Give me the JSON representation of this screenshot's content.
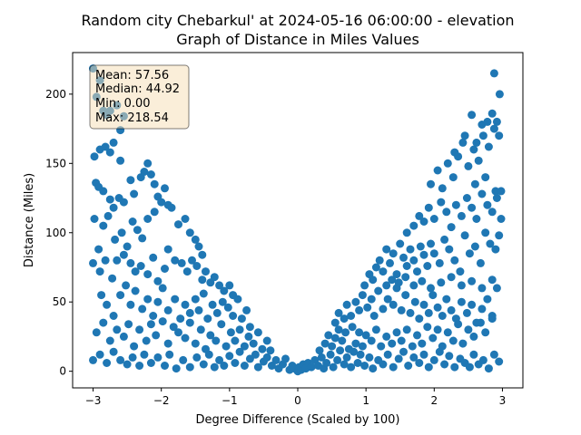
{
  "chart_data": {
    "type": "scatter",
    "title": "Random city Chebarkul' at 2024-05-16 06:00:00  - elevation",
    "subtitle": "Graph of Distance in Miles Values",
    "xlabel": "Degree Difference (Scaled by 100)",
    "ylabel": "Distance (Miles)",
    "xlim": [
      -3.3,
      3.3
    ],
    "ylim": [
      -12,
      230
    ],
    "xticks": [
      -3,
      -2,
      -1,
      0,
      1,
      2,
      3
    ],
    "xtick_labels": [
      "−3",
      "−2",
      "−1",
      "0",
      "1",
      "2",
      "3"
    ],
    "yticks": [
      0,
      50,
      100,
      150,
      200
    ],
    "ytick_labels": [
      "0",
      "50",
      "100",
      "150",
      "200"
    ],
    "grid": false,
    "point_color": "#1f77b4",
    "stats_box": {
      "mean": "Mean: 57.56",
      "median": "Median: 44.92",
      "min": "Min: 0.00",
      "max": "Max: 218.54"
    },
    "points": [
      [
        -3.0,
        218.5
      ],
      [
        -2.95,
        198
      ],
      [
        -2.9,
        210
      ],
      [
        -2.85,
        188
      ],
      [
        -2.8,
        185
      ],
      [
        -2.75,
        188
      ],
      [
        -2.65,
        192
      ],
      [
        -2.6,
        174
      ],
      [
        -2.55,
        184
      ],
      [
        -2.98,
        155
      ],
      [
        -2.9,
        160
      ],
      [
        -2.82,
        162
      ],
      [
        -2.75,
        158
      ],
      [
        -2.7,
        165
      ],
      [
        -2.6,
        152
      ],
      [
        -2.96,
        136
      ],
      [
        -2.92,
        133
      ],
      [
        -2.85,
        130
      ],
      [
        -2.75,
        124
      ],
      [
        -2.7,
        118
      ],
      [
        -2.62,
        125
      ],
      [
        -2.55,
        122
      ],
      [
        -2.45,
        138
      ],
      [
        -2.4,
        128
      ],
      [
        -2.3,
        140
      ],
      [
        -2.25,
        144
      ],
      [
        -2.2,
        150
      ],
      [
        -2.15,
        142
      ],
      [
        -2.1,
        135
      ],
      [
        -2.05,
        126
      ],
      [
        -1.95,
        132
      ],
      [
        -1.9,
        120
      ],
      [
        -2.98,
        110
      ],
      [
        -2.92,
        88
      ],
      [
        -2.85,
        105
      ],
      [
        -2.78,
        112
      ],
      [
        -2.68,
        95
      ],
      [
        -2.58,
        100
      ],
      [
        -2.5,
        90
      ],
      [
        -2.42,
        108
      ],
      [
        -2.35,
        102
      ],
      [
        -2.28,
        96
      ],
      [
        -2.2,
        110
      ],
      [
        -2.1,
        115
      ],
      [
        -2.0,
        122
      ],
      [
        -1.85,
        118
      ],
      [
        -1.75,
        106
      ],
      [
        -1.65,
        110
      ],
      [
        -1.58,
        100
      ],
      [
        -1.5,
        95
      ],
      [
        -1.45,
        90
      ],
      [
        -1.4,
        84
      ],
      [
        -3.0,
        78
      ],
      [
        -2.9,
        72
      ],
      [
        -2.82,
        80
      ],
      [
        -2.72,
        67
      ],
      [
        -2.65,
        80
      ],
      [
        -2.55,
        84
      ],
      [
        -2.45,
        78
      ],
      [
        -2.38,
        72
      ],
      [
        -2.3,
        76
      ],
      [
        -2.2,
        70
      ],
      [
        -2.12,
        82
      ],
      [
        -2.05,
        65
      ],
      [
        -1.95,
        74
      ],
      [
        -1.9,
        88
      ],
      [
        -1.8,
        80
      ],
      [
        -1.7,
        78
      ],
      [
        -1.62,
        72
      ],
      [
        -1.55,
        80
      ],
      [
        -1.48,
        76
      ],
      [
        -1.4,
        66
      ],
      [
        -1.35,
        72
      ],
      [
        -1.28,
        64
      ],
      [
        -1.22,
        68
      ],
      [
        -1.15,
        62
      ],
      [
        -1.08,
        58
      ],
      [
        -1.0,
        62
      ],
      [
        -0.95,
        55
      ],
      [
        -2.88,
        55
      ],
      [
        -2.8,
        48
      ],
      [
        -2.7,
        40
      ],
      [
        -2.6,
        55
      ],
      [
        -2.52,
        62
      ],
      [
        -2.45,
        48
      ],
      [
        -2.38,
        58
      ],
      [
        -2.28,
        45
      ],
      [
        -2.2,
        52
      ],
      [
        -2.12,
        40
      ],
      [
        -2.05,
        50
      ],
      [
        -1.98,
        60
      ],
      [
        -1.9,
        44
      ],
      [
        -1.8,
        52
      ],
      [
        -1.72,
        38
      ],
      [
        -1.65,
        48
      ],
      [
        -1.58,
        42
      ],
      [
        -1.5,
        52
      ],
      [
        -1.45,
        44
      ],
      [
        -1.38,
        56
      ],
      [
        -1.32,
        38
      ],
      [
        -1.25,
        48
      ],
      [
        -1.18,
        42
      ],
      [
        -1.1,
        50
      ],
      [
        -1.02,
        46
      ],
      [
        -0.95,
        40
      ],
      [
        -0.88,
        52
      ],
      [
        -0.82,
        38
      ],
      [
        -0.75,
        44
      ],
      [
        -0.7,
        32
      ],
      [
        -2.95,
        28
      ],
      [
        -2.85,
        35
      ],
      [
        -2.75,
        22
      ],
      [
        -2.65,
        30
      ],
      [
        -2.55,
        25
      ],
      [
        -2.48,
        34
      ],
      [
        -2.4,
        18
      ],
      [
        -2.32,
        30
      ],
      [
        -2.22,
        22
      ],
      [
        -2.15,
        34
      ],
      [
        -2.08,
        26
      ],
      [
        -1.98,
        36
      ],
      [
        -1.9,
        20
      ],
      [
        -1.82,
        32
      ],
      [
        -1.75,
        28
      ],
      [
        -1.65,
        24
      ],
      [
        -1.58,
        35
      ],
      [
        -1.5,
        20
      ],
      [
        -1.42,
        30
      ],
      [
        -1.35,
        16
      ],
      [
        -1.28,
        26
      ],
      [
        -1.2,
        22
      ],
      [
        -1.12,
        34
      ],
      [
        -1.05,
        18
      ],
      [
        -0.98,
        28
      ],
      [
        -0.92,
        22
      ],
      [
        -0.85,
        30
      ],
      [
        -0.78,
        18
      ],
      [
        -0.72,
        25
      ],
      [
        -0.65,
        20
      ],
      [
        -0.58,
        28
      ],
      [
        -0.52,
        16
      ],
      [
        -0.45,
        22
      ],
      [
        -0.4,
        15
      ],
      [
        -3.0,
        8
      ],
      [
        -2.9,
        12
      ],
      [
        -2.8,
        6
      ],
      [
        -2.7,
        14
      ],
      [
        -2.6,
        8
      ],
      [
        -2.5,
        5
      ],
      [
        -2.42,
        10
      ],
      [
        -2.32,
        4
      ],
      [
        -2.25,
        12
      ],
      [
        -2.15,
        6
      ],
      [
        -2.05,
        10
      ],
      [
        -1.95,
        4
      ],
      [
        -1.88,
        12
      ],
      [
        -1.78,
        2
      ],
      [
        -1.68,
        8
      ],
      [
        -1.58,
        3
      ],
      [
        -1.48,
        10
      ],
      [
        -1.38,
        5
      ],
      [
        -1.3,
        12
      ],
      [
        -1.22,
        3
      ],
      [
        -1.15,
        8
      ],
      [
        -1.08,
        4
      ],
      [
        -1.0,
        11
      ],
      [
        -0.92,
        6
      ],
      [
        -0.85,
        14
      ],
      [
        -0.78,
        4
      ],
      [
        -0.7,
        9
      ],
      [
        -0.62,
        12
      ],
      [
        -0.58,
        3
      ],
      [
        -0.5,
        7
      ],
      [
        -0.45,
        10
      ],
      [
        -0.38,
        4
      ],
      [
        -0.32,
        8
      ],
      [
        -0.28,
        2
      ],
      [
        -0.22,
        5
      ],
      [
        -0.18,
        9
      ],
      [
        -0.12,
        1
      ],
      [
        -0.08,
        4
      ],
      [
        -0.05,
        2
      ],
      [
        0.0,
        0
      ],
      [
        0.02,
        3
      ],
      [
        0.05,
        1
      ],
      [
        0.08,
        5
      ],
      [
        0.12,
        2
      ],
      [
        0.15,
        6
      ],
      [
        0.2,
        3
      ],
      [
        0.25,
        8
      ],
      [
        0.3,
        4
      ],
      [
        0.35,
        10
      ],
      [
        0.38,
        2
      ],
      [
        0.42,
        6
      ],
      [
        0.48,
        12
      ],
      [
        0.52,
        3
      ],
      [
        0.58,
        8
      ],
      [
        0.62,
        15
      ],
      [
        0.68,
        5
      ],
      [
        0.72,
        10
      ],
      [
        0.78,
        3
      ],
      [
        0.82,
        14
      ],
      [
        0.88,
        6
      ],
      [
        0.92,
        12
      ],
      [
        0.98,
        4
      ],
      [
        1.05,
        10
      ],
      [
        1.1,
        2
      ],
      [
        1.18,
        8
      ],
      [
        1.25,
        5
      ],
      [
        1.32,
        12
      ],
      [
        1.4,
        3
      ],
      [
        1.48,
        9
      ],
      [
        1.55,
        14
      ],
      [
        1.62,
        4
      ],
      [
        1.7,
        10
      ],
      [
        1.78,
        6
      ],
      [
        1.85,
        12
      ],
      [
        1.92,
        3
      ],
      [
        2.0,
        8
      ],
      [
        2.08,
        14
      ],
      [
        2.15,
        5
      ],
      [
        2.22,
        11
      ],
      [
        2.3,
        3
      ],
      [
        2.38,
        9
      ],
      [
        2.45,
        6
      ],
      [
        2.52,
        3
      ],
      [
        2.58,
        12
      ],
      [
        2.65,
        5
      ],
      [
        2.72,
        8
      ],
      [
        2.8,
        2
      ],
      [
        2.88,
        12
      ],
      [
        2.95,
        7
      ],
      [
        0.32,
        15
      ],
      [
        0.4,
        20
      ],
      [
        0.45,
        26
      ],
      [
        0.5,
        18
      ],
      [
        0.55,
        24
      ],
      [
        0.6,
        30
      ],
      [
        0.65,
        22
      ],
      [
        0.7,
        28
      ],
      [
        0.75,
        16
      ],
      [
        0.8,
        32
      ],
      [
        0.85,
        20
      ],
      [
        0.9,
        28
      ],
      [
        0.95,
        18
      ],
      [
        1.0,
        26
      ],
      [
        1.08,
        22
      ],
      [
        1.15,
        30
      ],
      [
        1.22,
        18
      ],
      [
        1.3,
        25
      ],
      [
        1.38,
        20
      ],
      [
        1.45,
        28
      ],
      [
        1.52,
        22
      ],
      [
        1.6,
        30
      ],
      [
        1.68,
        18
      ],
      [
        1.75,
        26
      ],
      [
        1.82,
        20
      ],
      [
        1.9,
        32
      ],
      [
        1.98,
        24
      ],
      [
        2.05,
        30
      ],
      [
        2.12,
        18
      ],
      [
        2.2,
        28
      ],
      [
        2.28,
        22
      ],
      [
        2.35,
        34
      ],
      [
        2.42,
        20
      ],
      [
        2.5,
        30
      ],
      [
        2.58,
        25
      ],
      [
        2.68,
        35
      ],
      [
        2.75,
        28
      ],
      [
        2.85,
        40
      ],
      [
        0.55,
        35
      ],
      [
        0.6,
        42
      ],
      [
        0.68,
        38
      ],
      [
        0.72,
        48
      ],
      [
        0.78,
        40
      ],
      [
        0.85,
        50
      ],
      [
        0.9,
        44
      ],
      [
        0.95,
        55
      ],
      [
        1.02,
        46
      ],
      [
        1.08,
        52
      ],
      [
        1.12,
        40
      ],
      [
        1.18,
        58
      ],
      [
        1.25,
        45
      ],
      [
        1.32,
        52
      ],
      [
        1.4,
        48
      ],
      [
        1.45,
        60
      ],
      [
        1.52,
        44
      ],
      [
        1.58,
        55
      ],
      [
        1.65,
        42
      ],
      [
        1.72,
        50
      ],
      [
        1.78,
        38
      ],
      [
        1.85,
        48
      ],
      [
        1.92,
        42
      ],
      [
        1.98,
        55
      ],
      [
        2.05,
        46
      ],
      [
        2.12,
        40
      ],
      [
        2.18,
        52
      ],
      [
        2.25,
        44
      ],
      [
        2.32,
        38
      ],
      [
        2.4,
        50
      ],
      [
        2.48,
        42
      ],
      [
        2.55,
        48
      ],
      [
        2.62,
        35
      ],
      [
        2.7,
        45
      ],
      [
        2.78,
        52
      ],
      [
        2.85,
        38
      ],
      [
        2.92,
        60
      ],
      [
        0.98,
        62
      ],
      [
        1.05,
        70
      ],
      [
        1.1,
        66
      ],
      [
        1.15,
        75
      ],
      [
        1.2,
        80
      ],
      [
        1.25,
        72
      ],
      [
        1.3,
        88
      ],
      [
        1.35,
        78
      ],
      [
        1.4,
        85
      ],
      [
        1.45,
        70
      ],
      [
        1.5,
        92
      ],
      [
        1.55,
        82
      ],
      [
        1.6,
        76
      ],
      [
        1.65,
        88
      ],
      [
        1.7,
        80
      ],
      [
        1.75,
        72
      ],
      [
        1.8,
        90
      ],
      [
        1.85,
        84
      ],
      [
        1.9,
        76
      ],
      [
        1.95,
        92
      ],
      [
        2.0,
        85
      ],
      [
        2.08,
        78
      ],
      [
        2.15,
        95
      ],
      [
        2.22,
        88
      ],
      [
        2.3,
        80
      ],
      [
        2.38,
        72
      ],
      [
        2.45,
        98
      ],
      [
        2.52,
        85
      ],
      [
        2.6,
        90
      ],
      [
        2.68,
        78
      ],
      [
        2.75,
        100
      ],
      [
        2.82,
        92
      ],
      [
        2.9,
        88
      ],
      [
        2.95,
        98
      ],
      [
        1.3,
        62
      ],
      [
        1.38,
        66
      ],
      [
        1.48,
        64
      ],
      [
        1.58,
        68
      ],
      [
        1.7,
        62
      ],
      [
        1.82,
        65
      ],
      [
        1.95,
        60
      ],
      [
        2.1,
        64
      ],
      [
        2.25,
        68
      ],
      [
        2.4,
        62
      ],
      [
        2.55,
        65
      ],
      [
        2.7,
        60
      ],
      [
        2.85,
        66
      ],
      [
        1.6,
        100
      ],
      [
        1.7,
        105
      ],
      [
        1.78,
        112
      ],
      [
        1.85,
        108
      ],
      [
        1.92,
        118
      ],
      [
        2.0,
        110
      ],
      [
        2.1,
        122
      ],
      [
        2.18,
        115
      ],
      [
        2.25,
        104
      ],
      [
        2.32,
        120
      ],
      [
        2.4,
        112
      ],
      [
        2.48,
        125
      ],
      [
        2.55,
        118
      ],
      [
        2.62,
        110
      ],
      [
        2.7,
        128
      ],
      [
        2.78,
        120
      ],
      [
        2.85,
        115
      ],
      [
        2.92,
        125
      ],
      [
        2.98,
        110
      ],
      [
        1.95,
        135
      ],
      [
        2.05,
        145
      ],
      [
        2.12,
        132
      ],
      [
        2.2,
        150
      ],
      [
        2.28,
        140
      ],
      [
        2.35,
        155
      ],
      [
        2.42,
        165
      ],
      [
        2.5,
        148
      ],
      [
        2.58,
        160
      ],
      [
        2.65,
        152
      ],
      [
        2.72,
        170
      ],
      [
        2.8,
        162
      ],
      [
        2.88,
        175
      ],
      [
        2.95,
        170
      ],
      [
        2.3,
        158
      ],
      [
        2.45,
        170
      ],
      [
        2.55,
        185
      ],
      [
        2.62,
        165
      ],
      [
        2.7,
        178
      ],
      [
        2.78,
        180
      ],
      [
        2.85,
        186
      ],
      [
        2.92,
        180
      ],
      [
        2.96,
        200
      ],
      [
        2.88,
        215
      ],
      [
        2.6,
        135
      ],
      [
        2.75,
        140
      ],
      [
        2.9,
        130
      ],
      [
        2.98,
        130
      ]
    ]
  }
}
